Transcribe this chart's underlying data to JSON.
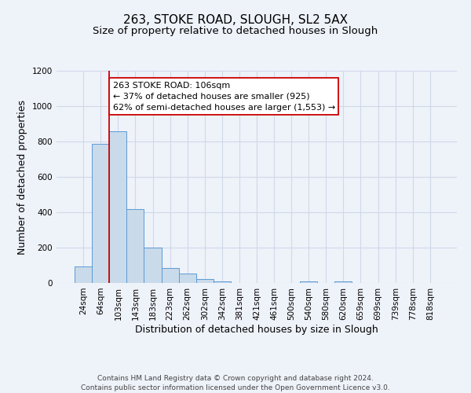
{
  "title_line1": "263, STOKE ROAD, SLOUGH, SL2 5AX",
  "title_line2": "Size of property relative to detached houses in Slough",
  "xlabel": "Distribution of detached houses by size in Slough",
  "ylabel": "Number of detached properties",
  "bar_labels": [
    "24sqm",
    "64sqm",
    "103sqm",
    "143sqm",
    "183sqm",
    "223sqm",
    "262sqm",
    "302sqm",
    "342sqm",
    "381sqm",
    "421sqm",
    "461sqm",
    "500sqm",
    "540sqm",
    "580sqm",
    "620sqm",
    "659sqm",
    "699sqm",
    "739sqm",
    "778sqm",
    "818sqm"
  ],
  "bar_values": [
    95,
    785,
    860,
    420,
    200,
    85,
    52,
    22,
    8,
    2,
    0,
    0,
    0,
    10,
    0,
    10,
    0,
    0,
    0,
    0,
    0
  ],
  "bar_color": "#c9daea",
  "bar_edge_color": "#5b9bd5",
  "grid_color": "#d0d8e8",
  "bg_color": "#eef2f9",
  "vline_x_index": 2,
  "vline_color": "#cc0000",
  "annotation_line1": "263 STOKE ROAD: 106sqm",
  "annotation_line2": "← 37% of detached houses are smaller (925)",
  "annotation_line3": "62% of semi-detached houses are larger (1,553) →",
  "annotation_box_color": "#ffffff",
  "annotation_border_color": "#cc0000",
  "ylim": [
    0,
    1200
  ],
  "yticks": [
    0,
    200,
    400,
    600,
    800,
    1000,
    1200
  ],
  "footer_line1": "Contains HM Land Registry data © Crown copyright and database right 2024.",
  "footer_line2": "Contains public sector information licensed under the Open Government Licence v3.0.",
  "title_fontsize": 11,
  "subtitle_fontsize": 9.5,
  "axis_label_fontsize": 9,
  "tick_fontsize": 7.5,
  "annotation_fontsize": 8,
  "footer_fontsize": 6.5
}
